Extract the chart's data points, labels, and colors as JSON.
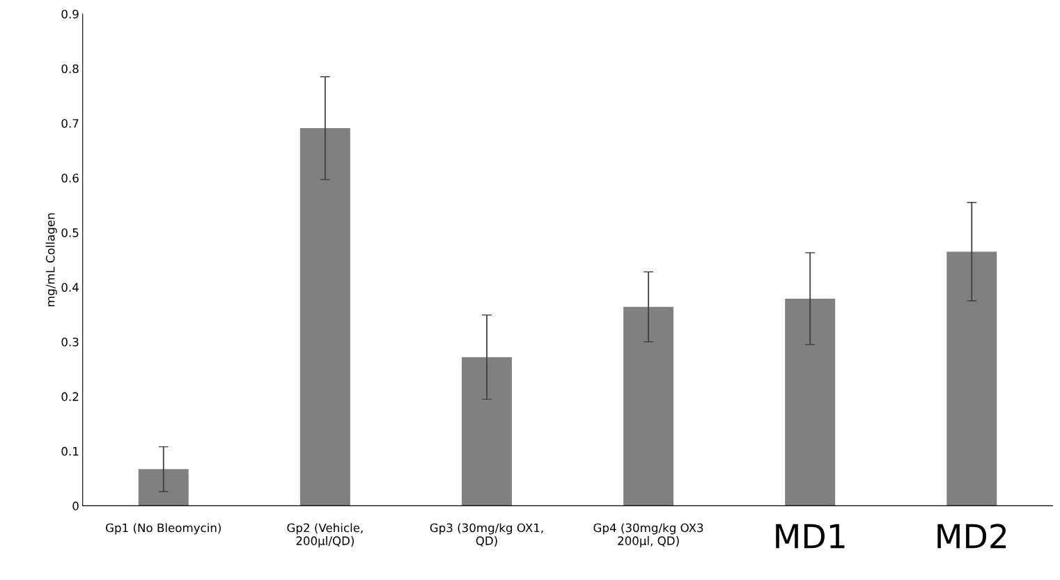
{
  "chart_data": {
    "type": "bar",
    "ylabel": "mg/mL Collagen",
    "categories": [
      "Gp1 (No Bleomycin)",
      "Gp2 (Vehicle,\n200µl/QD)",
      "Gp3 (30mg/kg OX1,\nQD)",
      "Gp4 (30mg/kg OX3\n200µl, QD)",
      "MD1",
      "MD2"
    ],
    "values": [
      0.067,
      0.691,
      0.272,
      0.364,
      0.379,
      0.465
    ],
    "errors": [
      0.041,
      0.094,
      0.077,
      0.064,
      0.084,
      0.09
    ],
    "color": "#808080",
    "ylim": [
      0,
      0.9
    ],
    "yticks": [
      0,
      0.1,
      0.2,
      0.3,
      0.4,
      0.5,
      0.6,
      0.7,
      0.8,
      0.9
    ],
    "grid": false,
    "legend": false
  }
}
